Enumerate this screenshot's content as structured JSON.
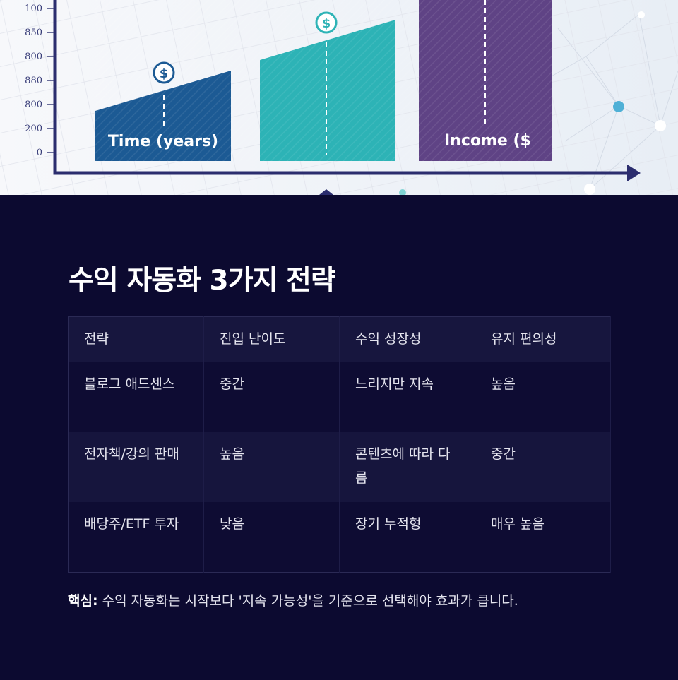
{
  "image": {
    "axis_labels": [
      "100",
      "850",
      "800",
      "880",
      "800",
      "200",
      "0"
    ],
    "bar_labels": [
      "Time (years)",
      "Income ($"
    ]
  },
  "heading": "수익 자동화 3가지 전략",
  "table": {
    "header": [
      "전략",
      "진입 난이도",
      "수익 성장성",
      "유지 편의성"
    ],
    "rows": [
      [
        "블로그 애드센스",
        "중간",
        "느리지만 지속",
        "높음"
      ],
      [
        "전자책/강의 판매",
        "높음",
        "콘텐츠에 따라 다름",
        "중간"
      ],
      [
        "배당주/ETF 투자",
        "낮음",
        "장기 누적형",
        "매우 높음"
      ]
    ]
  },
  "note": {
    "label": "핵심:",
    "text": "수익 자동화는 시작보다 '지속 가능성'을 기준으로 선택해야 효과가 큽니다."
  }
}
